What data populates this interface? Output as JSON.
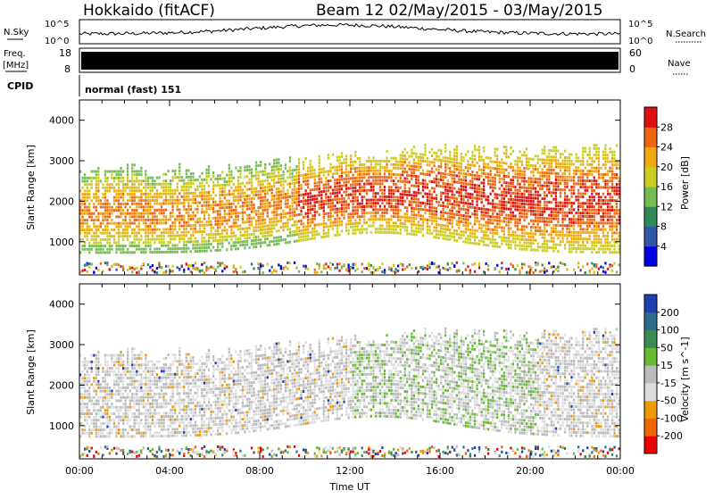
{
  "header": {
    "station": "Hokkaido (fitACF)",
    "beam_info": "Beam 12 02/May/2015 - 03/May/2015"
  },
  "labels": {
    "nsky": "N.Sky",
    "nsky_top": "10^5",
    "nsky_bottom": "10^0",
    "nsearch": "N.Search",
    "nsearch_top": "10^5",
    "nsearch_bottom": "10^0",
    "freq": "Freq.",
    "freq_unit": "[MHz]",
    "freq_top": "18",
    "freq_bottom": "8",
    "nave_top": "60",
    "nave_bottom": "0",
    "nave": "Nave",
    "cpid": "CPID",
    "cpid_value": "normal (fast) 151"
  },
  "chart_data": [
    {
      "type": "heatmap",
      "name": "power",
      "ylabel": "Slant Range [km]",
      "yticks": [
        1000,
        2000,
        3000,
        4000
      ],
      "ylim": [
        180,
        4500
      ],
      "xlabel": "",
      "colorbar_label": "Power [dB]",
      "colorbar_ticks": [
        4,
        8,
        12,
        16,
        20,
        24,
        28
      ],
      "colorbar_range": [
        0,
        32
      ],
      "colorbar_colors": [
        "#0000e0",
        "#3355aa",
        "#2f8a5a",
        "#77bb55",
        "#cccc22",
        "#eeaa11",
        "#ee6611",
        "#dd1111"
      ]
    },
    {
      "type": "heatmap",
      "name": "velocity",
      "ylabel": "Slant Range [km]",
      "yticks": [
        1000,
        2000,
        3000,
        4000
      ],
      "ylim": [
        180,
        4500
      ],
      "xlabel": "Time UT",
      "xticks": [
        "00:00",
        "04:00",
        "08:00",
        "12:00",
        "16:00",
        "20:00",
        "00:00"
      ],
      "colorbar_label": "Velocity [m s^-1]",
      "colorbar_ticks": [
        "200",
        "100",
        "50",
        "15",
        "-15",
        "-50",
        "-100",
        "-200"
      ],
      "colorbar_colors": [
        "#1f3fb0",
        "#2e6c8c",
        "#3b8c55",
        "#66bb33",
        "#bbbbbb",
        "#dddddd",
        "#ee9900",
        "#ee6600",
        "#ee0000"
      ]
    }
  ],
  "colors": {
    "background": "#ffffff",
    "ground_scatter": "#bbbbbb"
  }
}
